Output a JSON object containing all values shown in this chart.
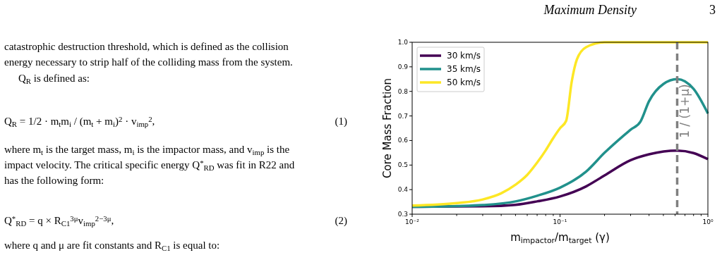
{
  "chart_data": {
    "type": "line",
    "xlabel": "m$_{impactor}$/m$_{target}$ (γ)",
    "ylabel": "Core Mass Fraction",
    "log": "x",
    "xlim": [
      0.01,
      1
    ],
    "ylim": [
      0.3,
      1.0
    ],
    "xticks": [
      {
        "value": 0.01,
        "label": "10⁻²"
      },
      {
        "value": 0.02,
        "label": null
      },
      {
        "value": 0.03,
        "label": null
      },
      {
        "value": 0.04,
        "label": null
      },
      {
        "value": 0.05,
        "label": null
      },
      {
        "value": 0.06,
        "label": null
      },
      {
        "value": 0.07,
        "label": null
      },
      {
        "value": 0.08,
        "label": null
      },
      {
        "value": 0.09,
        "label": null
      },
      {
        "value": 0.1,
        "label": "10⁻¹"
      },
      {
        "value": 0.2,
        "label": null
      },
      {
        "value": 0.3,
        "label": null
      },
      {
        "value": 0.4,
        "label": null
      },
      {
        "value": 0.5,
        "label": null
      },
      {
        "value": 0.6,
        "label": null
      },
      {
        "value": 0.7,
        "label": null
      },
      {
        "value": 0.8,
        "label": null
      },
      {
        "value": 0.9,
        "label": null
      },
      {
        "value": 1,
        "label": "10⁰"
      }
    ],
    "yticks": [
      {
        "value": 0.3,
        "label": "0.3"
      },
      {
        "value": 0.4,
        "label": "0.4"
      },
      {
        "value": 0.5,
        "label": "0.5"
      },
      {
        "value": 0.6,
        "label": "0.6"
      },
      {
        "value": 0.7,
        "label": "0.7"
      },
      {
        "value": 0.8,
        "label": "0.8"
      },
      {
        "value": 0.9,
        "label": "0.9"
      },
      {
        "value": 1.0,
        "label": "1.0"
      }
    ],
    "grid": false,
    "legend": "top left",
    "series": [
      {
        "name": "30 km/s",
        "color": "#440154",
        "x": [
          0.01,
          0.03,
          0.05,
          0.07,
          0.1,
          0.15,
          0.2,
          0.3,
          0.4,
          0.62,
          0.8,
          1.0
        ],
        "values": [
          0.33,
          0.332,
          0.338,
          0.352,
          0.372,
          0.413,
          0.458,
          0.52,
          0.544,
          0.559,
          0.549,
          0.524
        ]
      },
      {
        "name": "35 km/s",
        "color": "#21918c",
        "x": [
          0.01,
          0.02,
          0.03,
          0.05,
          0.07,
          0.1,
          0.15,
          0.2,
          0.3,
          0.35,
          0.4,
          0.5,
          0.62,
          0.8,
          1.0
        ],
        "values": [
          0.33,
          0.333,
          0.337,
          0.352,
          0.375,
          0.408,
          0.473,
          0.55,
          0.644,
          0.677,
          0.76,
          0.83,
          0.85,
          0.81,
          0.71
        ]
      },
      {
        "name": "50 km/s",
        "color": "#fde725",
        "x": [
          0.01,
          0.02,
          0.03,
          0.04,
          0.05,
          0.06,
          0.07,
          0.08,
          0.09,
          0.1,
          0.11,
          0.12,
          0.13,
          0.15,
          0.2,
          1.0
        ],
        "values": [
          0.335,
          0.345,
          0.36,
          0.385,
          0.42,
          0.46,
          0.51,
          0.56,
          0.61,
          0.65,
          0.68,
          0.84,
          0.93,
          0.98,
          1.0,
          1.0
        ]
      }
    ],
    "ref_lines": [
      {
        "axis": "x",
        "value": 0.62,
        "label": "1 / (1+μ)",
        "color": "#808080",
        "line_style": "dashed"
      }
    ],
    "annotations": [
      "Maximum Density",
      "3",
      "catastrophic destruction threshold, which is defined as the collision",
      "energy necessary to strip half of the colliding mass from the system.",
      "Q$_{R}$ is defined as:",
      "Q$_{R}$ = 1/2 · m$_{t}$m$_{i}$ / (m$_{t}$ + m$_{i}$)$^{2}$ · v$_{imp}$$^{2}$,",
      "(1)",
      "where m$_{t}$ is the target mass, m$_{i}$ is the impactor mass, and v$_{imp}$ is the",
      "impact velocity. The critical specific energy Q$^{*}$$_{RD}$ was fit in R22 and",
      "has the following form:",
      "Q$^{*}$$_{RD}$ = q × R$_{C1}$$^{3μ}$v$_{imp}$$^{2−3μ}$,",
      "(2)",
      "where q and μ are fit constants and R$_{C1}$ is equal to:"
    ]
  }
}
